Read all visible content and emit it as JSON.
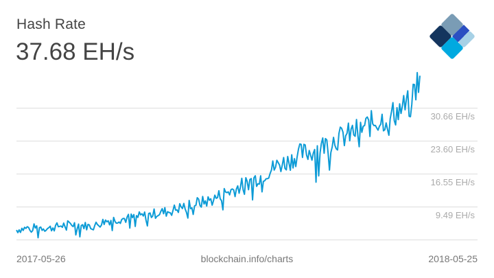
{
  "header": {
    "title": "Hash Rate",
    "current_value": "37.68 EH/s"
  },
  "logo": {
    "name": "blockchain-logo-icon",
    "colors": [
      "#7a9cb5",
      "#14355e",
      "#2b4fc2",
      "#00a9e0",
      "#a7d1e6"
    ]
  },
  "footer": {
    "start_date": "2017-05-26",
    "source": "blockchain.info/charts",
    "end_date": "2018-05-25"
  },
  "axis": {
    "y_ticks": [
      "30.66 EH/s",
      "23.60 EH/s",
      "16.55 EH/s",
      "9.49 EH/s"
    ]
  },
  "colors": {
    "line": "#0d9bd6",
    "grid": "#dddddd",
    "text": "#444444",
    "tick_text": "#aaaaaa"
  },
  "chart_data": {
    "type": "line",
    "title": "Hash Rate",
    "subtitle": "37.68 EH/s",
    "xlabel": "",
    "ylabel": "EH/s",
    "x_range": [
      "2017-05-26",
      "2018-05-25"
    ],
    "y_ticks": [
      9.49,
      16.55,
      23.6,
      30.66
    ],
    "ylim": [
      2.43,
      37.72
    ],
    "grid": true,
    "legend": "none",
    "series": [
      {
        "name": "Hash Rate (EH/s)",
        "x": [
          "2017-05-26",
          "2017-06-05",
          "2017-06-15",
          "2017-06-25",
          "2017-07-05",
          "2017-07-15",
          "2017-07-25",
          "2017-08-04",
          "2017-08-14",
          "2017-08-24",
          "2017-09-03",
          "2017-09-13",
          "2017-09-23",
          "2017-10-03",
          "2017-10-13",
          "2017-10-23",
          "2017-11-02",
          "2017-11-12",
          "2017-11-22",
          "2017-12-02",
          "2017-12-12",
          "2017-12-22",
          "2018-01-01",
          "2018-01-11",
          "2018-01-21",
          "2018-01-31",
          "2018-02-10",
          "2018-02-20",
          "2018-03-02",
          "2018-03-12",
          "2018-03-22",
          "2018-04-01",
          "2018-04-11",
          "2018-04-21",
          "2018-05-01",
          "2018-05-11",
          "2018-05-21",
          "2018-05-25"
        ],
        "values": [
          4.5,
          4.9,
          5.1,
          4.8,
          5.4,
          5.8,
          5.5,
          5.2,
          6.3,
          6.8,
          6.9,
          7.3,
          7.6,
          8.2,
          8.5,
          9.3,
          10.2,
          10.4,
          11.0,
          12.4,
          13.2,
          14.5,
          15.6,
          17.0,
          18.5,
          19.3,
          20.9,
          21.3,
          22.5,
          23.8,
          24.5,
          25.6,
          26.7,
          27.9,
          28.6,
          30.1,
          31.5,
          37.68
        ]
      }
    ]
  }
}
